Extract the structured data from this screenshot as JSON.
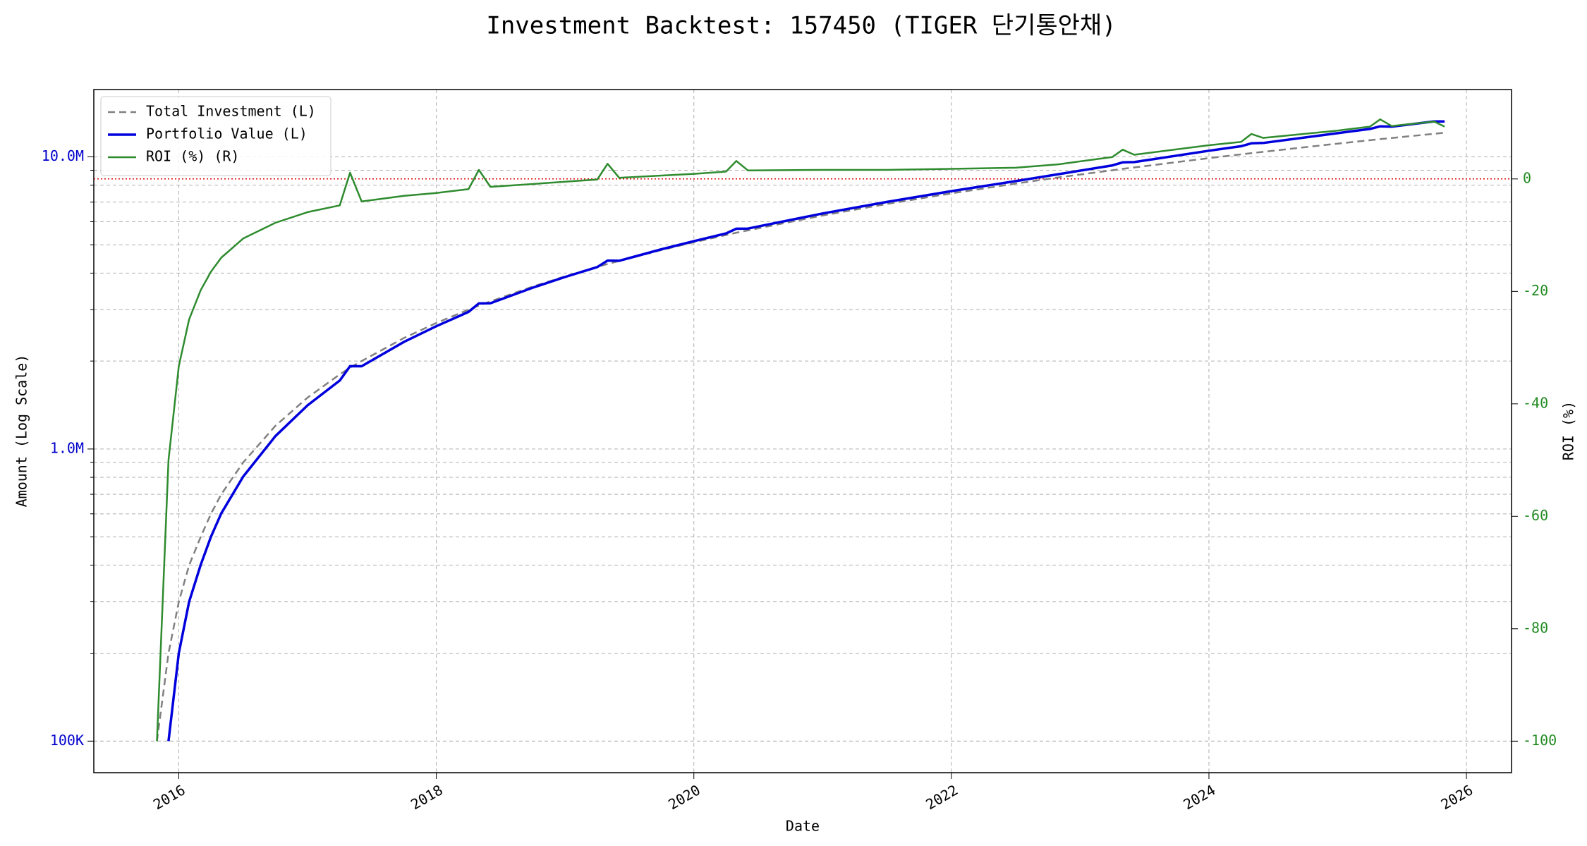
{
  "chart_data": {
    "type": "line",
    "title": "Investment Backtest: 157450 (TIGER 단기통안채)",
    "xlabel": "Date",
    "ylabel": "Amount (Log Scale)",
    "y2label": "ROI (%)",
    "x": [
      2015.83,
      2015.92,
      2016.0,
      2016.08,
      2016.17,
      2016.25,
      2016.33,
      2016.5,
      2016.75,
      2017.0,
      2017.25,
      2017.33,
      2017.42,
      2017.75,
      2018.0,
      2018.25,
      2018.33,
      2018.42,
      2018.75,
      2019.0,
      2019.25,
      2019.33,
      2019.42,
      2019.75,
      2020.0,
      2020.25,
      2020.33,
      2020.42,
      2021.0,
      2021.5,
      2022.0,
      2022.5,
      2022.83,
      2023.25,
      2023.33,
      2023.42,
      2024.0,
      2024.25,
      2024.33,
      2024.42,
      2025.0,
      2025.25,
      2025.33,
      2025.42,
      2025.75,
      2025.83
    ],
    "series": [
      {
        "name": "Total Investment (L)",
        "color": "#808080",
        "dashed": true,
        "width": 2.5,
        "values": [
          100000,
          200000,
          300000,
          400000,
          500000,
          600000,
          700000,
          900000,
          1200000,
          1500000,
          1800000,
          1900000,
          2000000,
          2400000,
          2700000,
          3000000,
          3100000,
          3200000,
          3600000,
          3900000,
          4200000,
          4300000,
          4400000,
          4800000,
          5100000,
          5400000,
          5500000,
          5600000,
          6300000,
          6900000,
          7500000,
          8100000,
          8500000,
          9000000,
          9100000,
          9200000,
          9900000,
          10200000,
          10300000,
          10400000,
          11100000,
          11400000,
          11500000,
          11600000,
          12000000,
          12100000
        ]
      },
      {
        "name": "Portfolio Value (L)",
        "color": "#0000dd",
        "dashed": false,
        "width": 3.5,
        "values": [
          null,
          100000,
          200000,
          300000,
          401000,
          501000,
          602000,
          804600,
          1106400,
          1411500,
          1715400,
          1920900,
          1920000,
          2328000,
          2632500,
          2946000,
          3149600,
          3155200,
          3567600,
          3880500,
          4195800,
          4416100,
          4408800,
          4828800,
          5145900,
          5470200,
          5676000,
          5684000,
          6400800,
          7010400,
          7635000,
          8262000,
          8721000,
          9351000,
          9573200,
          9595600,
          10494000,
          10873200,
          11124000,
          11159200,
          12054600,
          12460200,
          12719000,
          12690400,
          13224000,
          13225300
        ]
      },
      {
        "name": "ROI (%) (R)",
        "color": "#2e8b2e",
        "dashed": false,
        "width": 2.5,
        "axis": "y2",
        "values": [
          -100,
          -50,
          -33.3,
          -25,
          -19.8,
          -16.5,
          -14,
          -10.6,
          -7.8,
          -5.9,
          -4.7,
          1.1,
          -4.0,
          -3.0,
          -2.5,
          -1.8,
          1.6,
          -1.4,
          -0.9,
          -0.5,
          -0.1,
          2.7,
          0.2,
          0.6,
          0.9,
          1.3,
          3.2,
          1.5,
          1.6,
          1.6,
          1.8,
          2.0,
          2.6,
          3.9,
          5.2,
          4.3,
          6.0,
          6.6,
          8.0,
          7.3,
          8.6,
          9.3,
          10.6,
          9.4,
          10.2,
          9.3
        ]
      }
    ],
    "xlim": [
      2015.34,
      2026.35
    ],
    "xticks": [
      2016,
      2018,
      2020,
      2022,
      2024,
      2026
    ],
    "ylim": [
      78000,
      17000000
    ],
    "log_y": true,
    "yticks": [
      {
        "value": 100000,
        "label": "100K"
      },
      {
        "value": 1000000,
        "label": "1.0M"
      },
      {
        "value": 10000000,
        "label": "10.0M"
      }
    ],
    "yminor_ticks": [
      200000,
      300000,
      400000,
      500000,
      600000,
      700000,
      800000,
      900000,
      2000000,
      3000000,
      4000000,
      5000000,
      6000000,
      7000000,
      8000000,
      9000000
    ],
    "y2lim": [
      -105.6,
      15.9
    ],
    "y2ticks": [
      -100,
      -80,
      -60,
      -40,
      -20,
      0
    ],
    "y2_hline": {
      "value": 0,
      "color": "#dd0000"
    },
    "ylabel_color": "#0000cc",
    "y2label_color": "#228b22",
    "grid": true,
    "legend": "upper left"
  }
}
